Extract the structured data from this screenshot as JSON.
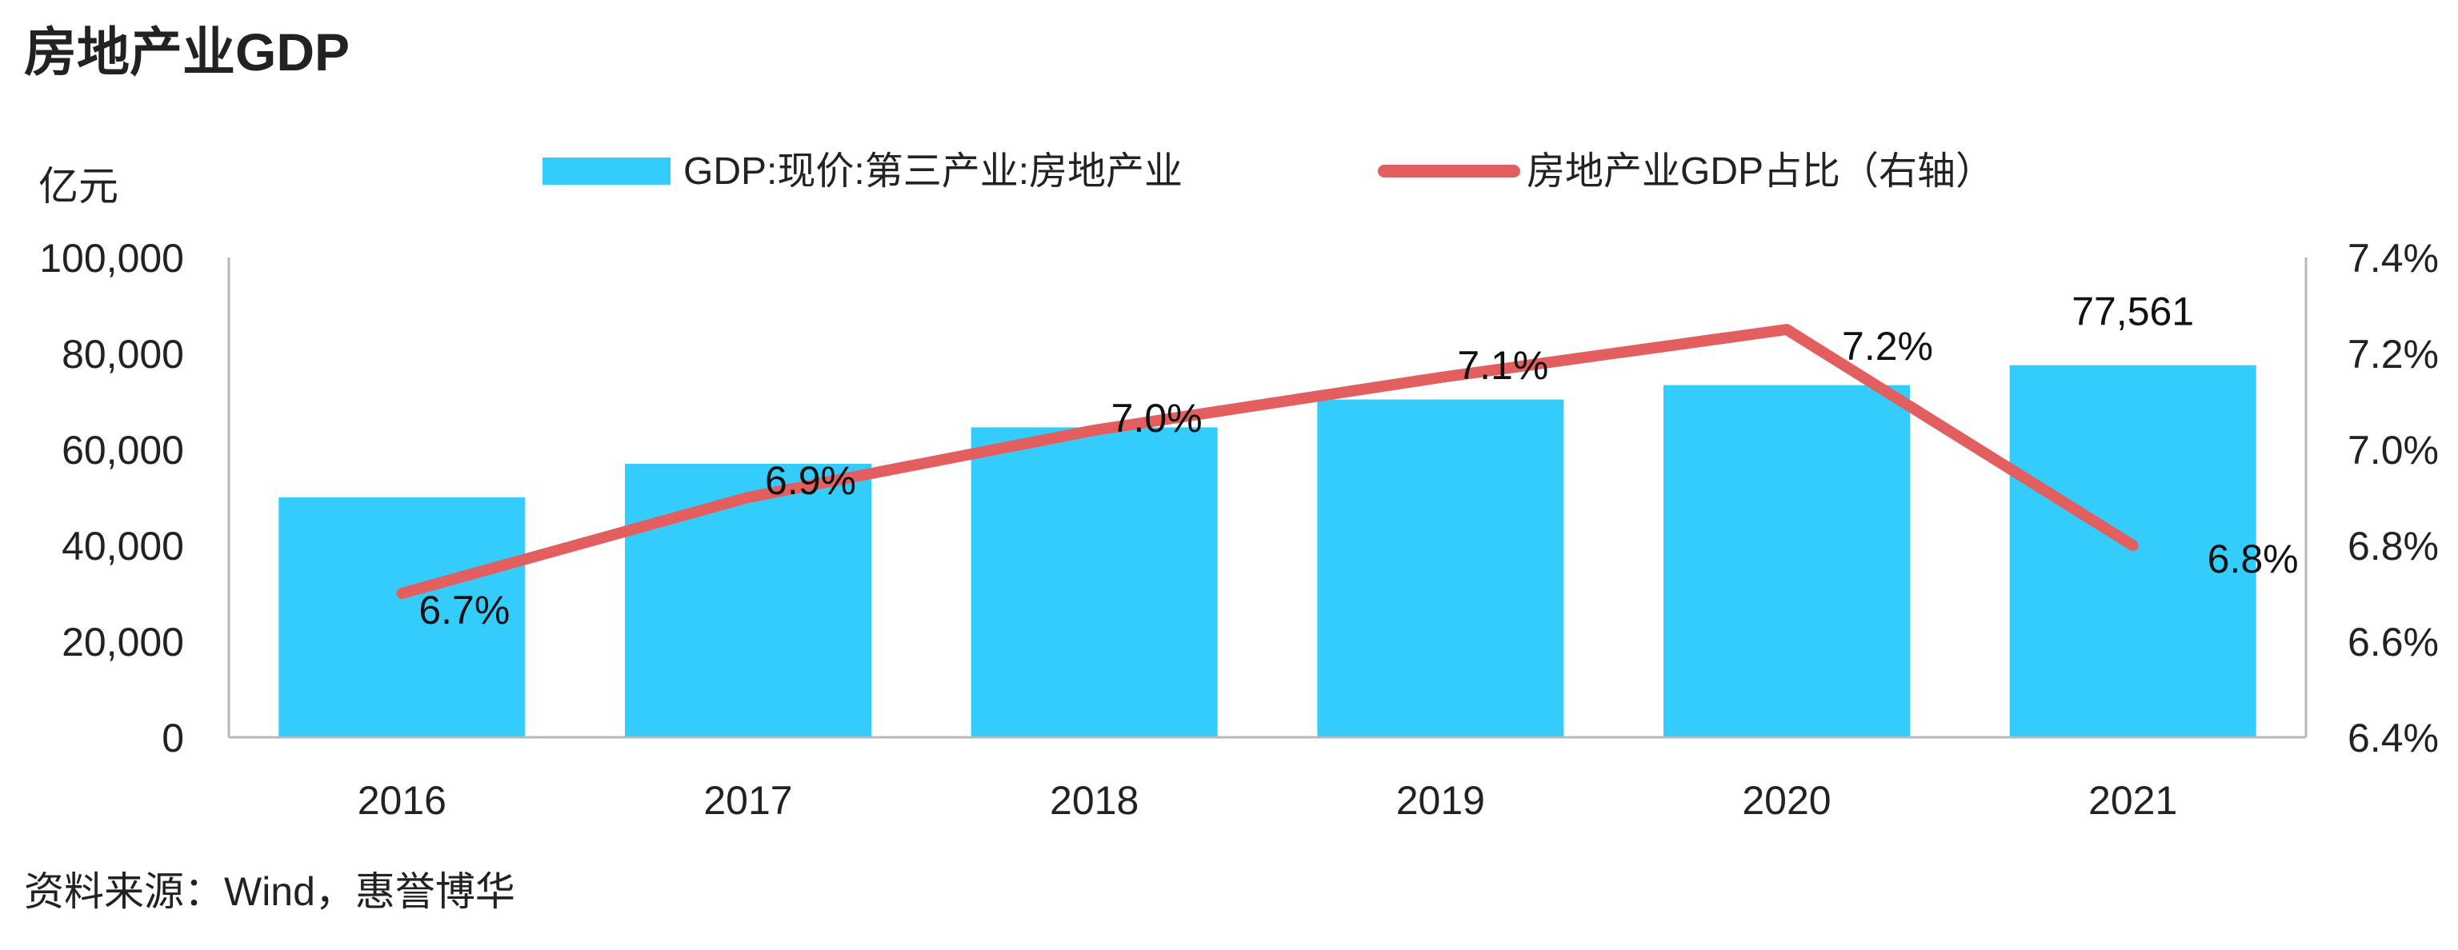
{
  "title": "房地产业GDP",
  "source": "资料来源：Wind，惠誉博华",
  "colors": {
    "bar": "#33CCFB",
    "line": "#E35F5F",
    "axis": "#B8B8B8",
    "text": "#222222",
    "label": "#111111"
  },
  "chart_data": {
    "type": "bar",
    "categories": [
      "2016",
      "2017",
      "2018",
      "2019",
      "2020",
      "2021"
    ],
    "series": [
      {
        "name": "GDP:现价:第三产业:房地产业",
        "type": "bar",
        "axis": "left",
        "values": [
          50000,
          57000,
          64600,
          70400,
          73400,
          77561
        ],
        "data_labels": [
          "",
          "",
          "",
          "",
          "",
          "77,561"
        ]
      },
      {
        "name": "房地产业GDP占比（右轴）",
        "type": "line",
        "axis": "right",
        "values": [
          6.7,
          6.9,
          7.04,
          7.15,
          7.25,
          6.8
        ],
        "data_labels": [
          "6.7%",
          "6.9%",
          "7.0%",
          "7.1%",
          "7.2%",
          "6.8%"
        ]
      }
    ],
    "y_left": {
      "unit_label": "亿元",
      "ylim": [
        0,
        100000
      ],
      "ticks": [
        0,
        20000,
        40000,
        60000,
        80000,
        100000
      ],
      "tick_labels": [
        "0",
        "20,000",
        "40,000",
        "60,000",
        "80,000",
        "100,000"
      ]
    },
    "y_right": {
      "ylim": [
        6.4,
        7.4
      ],
      "ticks": [
        6.4,
        6.6,
        6.8,
        7.0,
        7.2,
        7.4
      ],
      "tick_labels": [
        "6.4%",
        "6.6%",
        "6.8%",
        "7.0%",
        "7.2%",
        "7.4%"
      ]
    },
    "grid": false,
    "legend": "top-center"
  }
}
